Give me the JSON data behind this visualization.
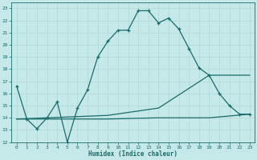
{
  "xlabel": "Humidex (Indice chaleur)",
  "bg_color": "#c5e8e8",
  "grid_color": "#b0d8d8",
  "line_color": "#1a6b6b",
  "xlim": [
    -0.5,
    23.5
  ],
  "ylim": [
    12,
    23.5
  ],
  "ytick_vals": [
    12,
    13,
    14,
    15,
    16,
    17,
    18,
    19,
    20,
    21,
    22,
    23
  ],
  "xtick_vals": [
    0,
    1,
    2,
    3,
    4,
    5,
    6,
    7,
    8,
    9,
    10,
    11,
    12,
    13,
    14,
    15,
    16,
    17,
    18,
    19,
    20,
    21,
    22,
    23
  ],
  "curve_x": [
    0,
    1,
    2,
    3,
    4,
    5,
    6,
    7,
    8,
    9,
    10,
    11,
    12,
    13,
    14,
    15,
    16,
    17,
    18,
    19,
    20,
    21,
    22,
    23
  ],
  "curve_y": [
    16.6,
    13.9,
    13.1,
    14.0,
    15.3,
    12.0,
    14.8,
    16.3,
    19.0,
    20.3,
    21.2,
    21.2,
    22.8,
    22.8,
    21.8,
    22.2,
    21.3,
    19.7,
    18.1,
    17.5,
    16.0,
    15.0,
    14.3,
    14.3
  ],
  "flat_x": [
    0,
    9,
    14,
    19,
    23
  ],
  "flat_y": [
    13.9,
    13.9,
    14.0,
    14.0,
    14.3
  ],
  "diag_x": [
    0,
    9,
    14,
    19,
    23
  ],
  "diag_y": [
    13.9,
    14.2,
    14.8,
    17.5,
    17.5
  ]
}
